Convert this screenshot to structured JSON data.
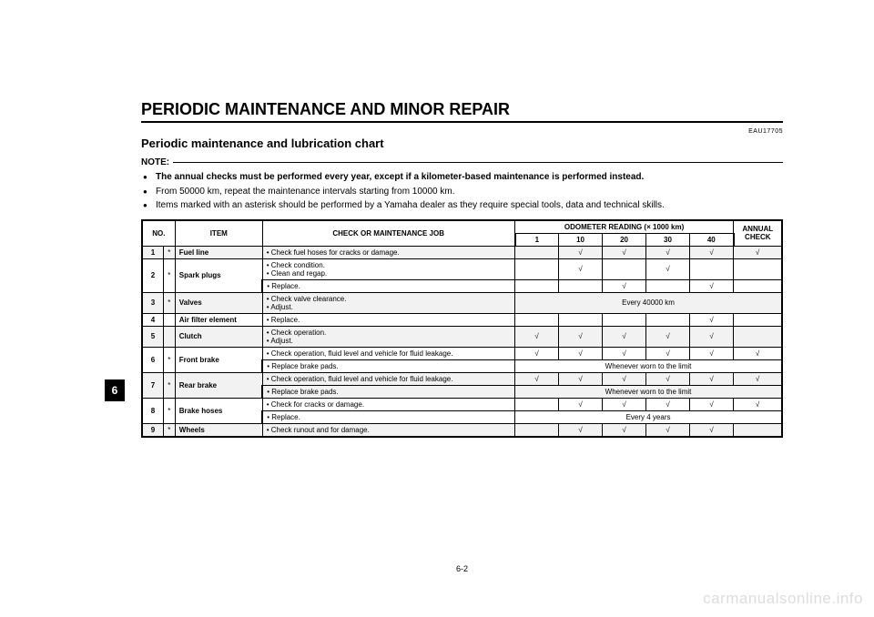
{
  "colors": {
    "text": "#000000",
    "background": "#ffffff",
    "shaded_row": "#f2f2f2",
    "watermark": "#dddddd",
    "tab_bg": "#000000",
    "tab_fg": "#ffffff"
  },
  "fonts": {
    "body_family": "Arial, Helvetica, sans-serif",
    "section_title_pt": 18,
    "subtitle_pt": 13,
    "note_pt": 10,
    "table_pt": 8,
    "doc_code_pt": 7,
    "page_num_pt": 9,
    "watermark_pt": 17
  },
  "header": {
    "section_title": "PERIODIC MAINTENANCE AND MINOR REPAIR",
    "doc_code": "EAU17705",
    "subtitle": "Periodic maintenance and lubrication chart"
  },
  "note": {
    "label": "NOTE:",
    "items": [
      {
        "text": "The annual checks must be performed every year, except if a kilometer-based maintenance is performed instead.",
        "bold": true
      },
      {
        "text": "From 50000 km, repeat the maintenance intervals starting from 10000 km.",
        "bold": false
      },
      {
        "text": "Items marked with an asterisk should be performed by a Yamaha dealer as they require special tools, data and technical skills.",
        "bold": false
      }
    ]
  },
  "side_tab": "6",
  "table": {
    "check_mark": "√",
    "header": {
      "no": "NO.",
      "item": "ITEM",
      "job": "CHECK OR MAINTENANCE JOB",
      "odometer": "ODOMETER READING (× 1000 km)",
      "annual": "ANNUAL CHECK",
      "km_cols": [
        "1",
        "10",
        "20",
        "30",
        "40"
      ]
    },
    "rows": [
      {
        "no": "1",
        "ast": "*",
        "item": "Fuel line",
        "shaded": true,
        "jobs": [
          {
            "text": "• Check fuel hoses for cracks or damage.",
            "checks": [
              "",
              "√",
              "√",
              "√",
              "√"
            ],
            "annual": "√"
          }
        ]
      },
      {
        "no": "2",
        "ast": "*",
        "item": "Spark plugs",
        "shaded": false,
        "jobs": [
          {
            "text": "• Check condition.\n• Clean and regap.",
            "checks": [
              "",
              "√",
              "",
              "√",
              ""
            ],
            "annual": ""
          },
          {
            "text": "• Replace.",
            "checks": [
              "",
              "",
              "√",
              "",
              "√"
            ],
            "annual": ""
          }
        ]
      },
      {
        "no": "3",
        "ast": "*",
        "item": "Valves",
        "shaded": true,
        "jobs": [
          {
            "text": "• Check valve clearance.\n• Adjust.",
            "span_text": "Every 40000 km",
            "annual_merged": true
          }
        ]
      },
      {
        "no": "4",
        "ast": "",
        "item": "Air filter element",
        "shaded": false,
        "jobs": [
          {
            "text": "• Replace.",
            "checks": [
              "",
              "",
              "",
              "",
              "√"
            ],
            "annual": ""
          }
        ]
      },
      {
        "no": "5",
        "ast": "",
        "item": "Clutch",
        "shaded": true,
        "jobs": [
          {
            "text": "• Check operation.\n• Adjust.",
            "checks": [
              "√",
              "√",
              "√",
              "√",
              "√"
            ],
            "annual": ""
          }
        ]
      },
      {
        "no": "6",
        "ast": "*",
        "item": "Front brake",
        "shaded": false,
        "jobs": [
          {
            "text": "• Check operation, fluid level and vehicle for fluid leakage.",
            "checks": [
              "√",
              "√",
              "√",
              "√",
              "√"
            ],
            "annual": "√"
          },
          {
            "text": "• Replace brake pads.",
            "span_text": "Whenever worn to the limit",
            "annual_merged": true
          }
        ]
      },
      {
        "no": "7",
        "ast": "*",
        "item": "Rear brake",
        "shaded": true,
        "jobs": [
          {
            "text": "• Check operation, fluid level and vehicle for fluid leakage.",
            "checks": [
              "√",
              "√",
              "√",
              "√",
              "√"
            ],
            "annual": "√"
          },
          {
            "text": "• Replace brake pads.",
            "span_text": "Whenever worn to the limit",
            "annual_merged": true
          }
        ]
      },
      {
        "no": "8",
        "ast": "*",
        "item": "Brake hoses",
        "shaded": false,
        "jobs": [
          {
            "text": "• Check for cracks or damage.",
            "checks": [
              "",
              "√",
              "√",
              "√",
              "√"
            ],
            "annual": "√"
          },
          {
            "text": "• Replace.",
            "span_text": "Every 4 years",
            "annual_merged": true
          }
        ]
      },
      {
        "no": "9",
        "ast": "*",
        "item": "Wheels",
        "shaded": true,
        "jobs": [
          {
            "text": "• Check runout and for damage.",
            "checks": [
              "",
              "√",
              "√",
              "√",
              "√"
            ],
            "annual": ""
          }
        ]
      }
    ]
  },
  "page_number": "6-2",
  "watermark": "carmanualsonline.info"
}
